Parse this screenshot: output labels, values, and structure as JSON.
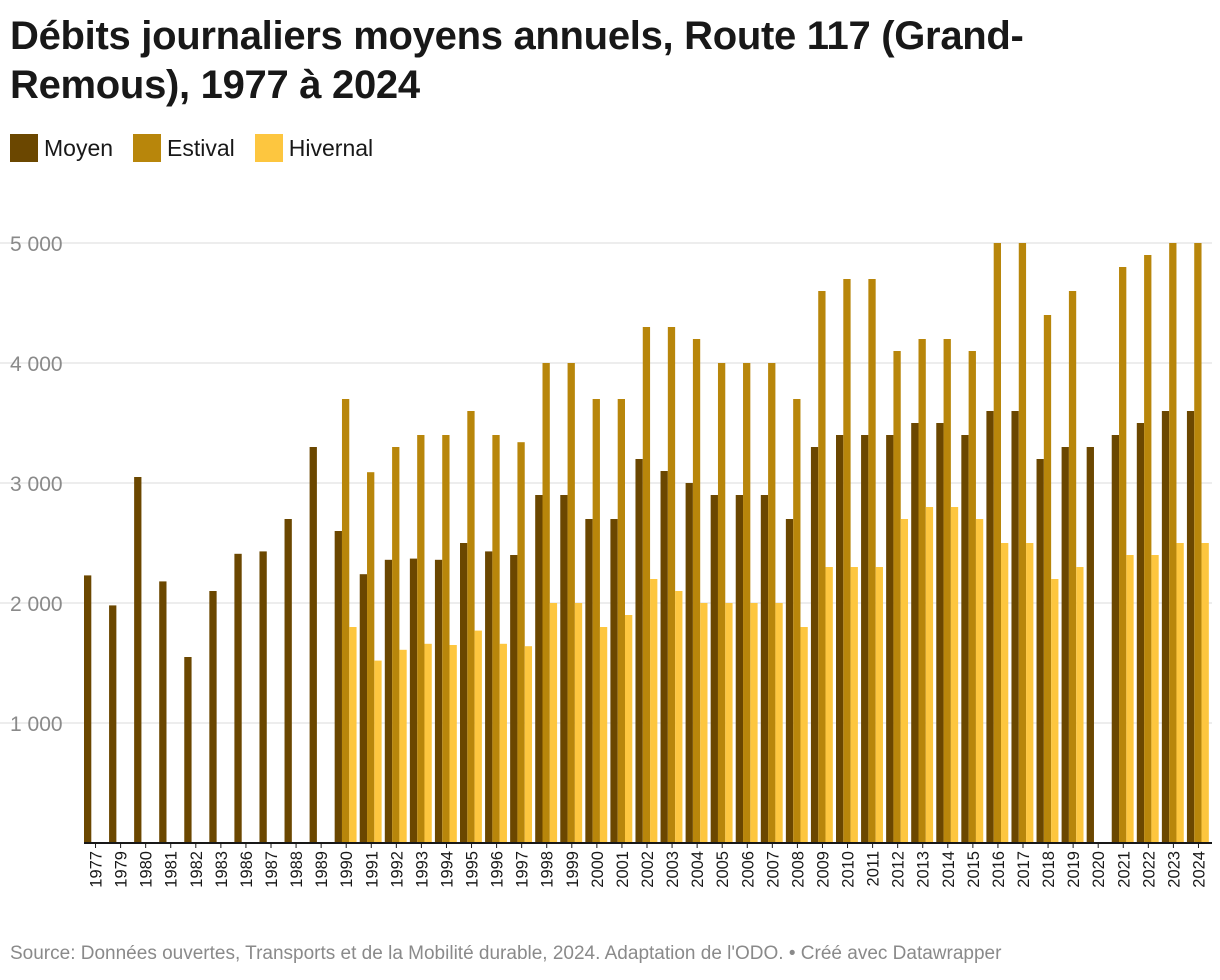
{
  "title": "Débits journaliers moyens annuels, Route 117 (Grand-Remous), 1977 à 2024",
  "source": "Source: Données ouvertes, Transports et de la Mobilité durable, 2024. Adaptation de l'ODO. • Créé avec Datawrapper",
  "colors": {
    "Moyen": "#6b4700",
    "Estival": "#b8860b",
    "Hivernal": "#fdc63f",
    "grid": "#e2e2e2",
    "axis": "#181818",
    "tick": "#8a8a8a"
  },
  "chart_data": {
    "type": "bar",
    "title": "Débits journaliers moyens annuels, Route 117 (Grand-Remous), 1977 à 2024",
    "xlabel": "",
    "ylabel": "",
    "ylim": [
      0,
      5000
    ],
    "yticks": [
      1000,
      2000,
      3000,
      4000,
      5000
    ],
    "ytick_labels": [
      "1 000",
      "2 000",
      "3 000",
      "4 000",
      "5 000"
    ],
    "grid": true,
    "legend_position": "top-left",
    "categories": [
      "1977",
      "1979",
      "1980",
      "1981",
      "1982",
      "1983",
      "1986",
      "1987",
      "1988",
      "1989",
      "1990",
      "1991",
      "1992",
      "1993",
      "1994",
      "1995",
      "1996",
      "1997",
      "1998",
      "1999",
      "2000",
      "2001",
      "2002",
      "2003",
      "2004",
      "2005",
      "2006",
      "2007",
      "2008",
      "2009",
      "2010",
      "2011",
      "2012",
      "2013",
      "2014",
      "2015",
      "2016",
      "2017",
      "2018",
      "2019",
      "2020",
      "2021",
      "2022",
      "2023",
      "2024"
    ],
    "series": [
      {
        "name": "Moyen",
        "values": [
          2230,
          1980,
          3050,
          2180,
          1550,
          2100,
          2410,
          2430,
          2700,
          3300,
          2600,
          2240,
          2360,
          2370,
          2360,
          2500,
          2430,
          2400,
          2900,
          2900,
          2700,
          2700,
          3200,
          3100,
          3000,
          2900,
          2900,
          2900,
          2700,
          3300,
          3400,
          3400,
          3400,
          3500,
          3500,
          3400,
          3600,
          3600,
          3200,
          3300,
          3300,
          3400,
          3500,
          3600,
          3600
        ]
      },
      {
        "name": "Estival",
        "values": [
          null,
          null,
          null,
          null,
          null,
          null,
          null,
          null,
          null,
          null,
          3700,
          3090,
          3300,
          3400,
          3400,
          3600,
          3400,
          3340,
          4000,
          4000,
          3700,
          3700,
          4300,
          4300,
          4200,
          4000,
          4000,
          4000,
          3700,
          4600,
          4700,
          4700,
          4100,
          4200,
          4200,
          4100,
          5000,
          5000,
          4400,
          4600,
          null,
          4800,
          4900,
          5000,
          5000
        ]
      },
      {
        "name": "Hivernal",
        "values": [
          null,
          null,
          null,
          null,
          null,
          null,
          null,
          null,
          null,
          null,
          1800,
          1520,
          1610,
          1660,
          1650,
          1770,
          1660,
          1640,
          2000,
          2000,
          1800,
          1900,
          2200,
          2100,
          2000,
          2000,
          2000,
          2000,
          1800,
          2300,
          2300,
          2300,
          2700,
          2800,
          2800,
          2700,
          2500,
          2500,
          2200,
          2300,
          null,
          2400,
          2400,
          2500,
          2500
        ]
      }
    ]
  }
}
